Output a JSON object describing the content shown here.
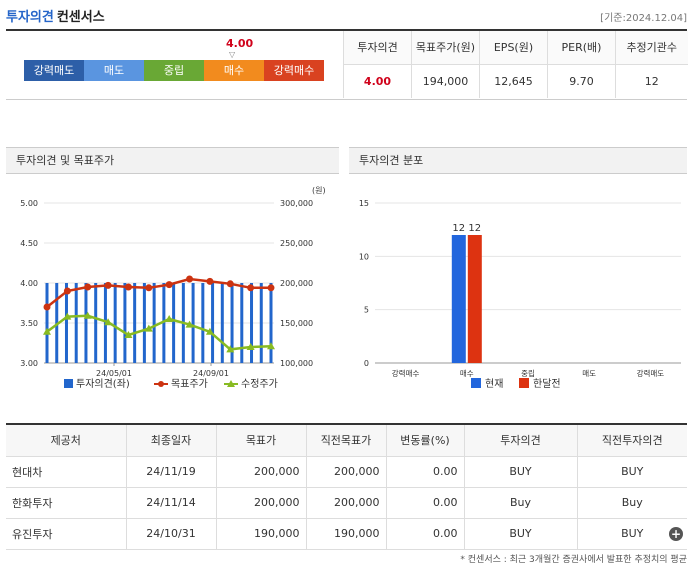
{
  "header": {
    "title": "투자의견",
    "subtitle": "컨센서스",
    "date": "[기준:2024.12.04]"
  },
  "rating_bar": {
    "current": "4.00",
    "segments": [
      {
        "label": "강력매도",
        "color": "#2d5fa8"
      },
      {
        "label": "매도",
        "color": "#5a95e0"
      },
      {
        "label": "중립",
        "color": "#69a835"
      },
      {
        "label": "매수",
        "color": "#f28b1e"
      },
      {
        "label": "강력매수",
        "color": "#d94220"
      }
    ]
  },
  "summary": {
    "headers": [
      "투자의견",
      "목표주가(원)",
      "EPS(원)",
      "PER(배)",
      "추정기관수"
    ],
    "values": [
      "4.00",
      "194,000",
      "12,645",
      "9.70",
      "12"
    ]
  },
  "chart1": {
    "title": "투자의견 및 목표주가",
    "unit": "(원)",
    "legend": [
      "투자의견(좌)",
      "목표주가",
      "수정주가"
    ]
  },
  "chart2": {
    "title": "투자의견 분포",
    "legend": [
      "현재",
      "한달전"
    ]
  },
  "chart_data": [
    {
      "type": "line",
      "title": "투자의견 및 목표주가",
      "x_ticks": [
        "24/05/01",
        "24/09/01"
      ],
      "y_left": {
        "ticks": [
          "5.00",
          "4.50",
          "4.00",
          "3.50",
          "3.00"
        ],
        "range": [
          3.0,
          5.0
        ]
      },
      "y_right": {
        "ticks": [
          "300,000",
          "250,000",
          "200,000",
          "150,000",
          "100,000"
        ],
        "range": [
          100000,
          300000
        ]
      },
      "series": [
        {
          "name": "투자의견(좌)",
          "color": "#2266cc",
          "values": [
            4.0,
            4.0,
            4.0,
            4.0,
            4.0,
            4.0,
            4.0,
            4.0,
            4.0,
            4.0,
            4.0,
            4.0,
            4.0,
            4.0,
            4.0,
            4.0,
            4.0,
            4.0,
            4.0,
            4.0,
            4.0,
            4.0,
            4.0,
            4.0
          ]
        },
        {
          "name": "목표주가",
          "color": "#cc3311",
          "values": [
            170000,
            190000,
            195000,
            197000,
            195000,
            194000,
            198000,
            205000,
            202000,
            199000,
            194000,
            194000
          ]
        },
        {
          "name": "수정주가",
          "color": "#88bb22",
          "values": [
            139000,
            158000,
            159000,
            151000,
            135000,
            143000,
            155000,
            148000,
            139000,
            117000,
            120000,
            121000
          ]
        }
      ]
    },
    {
      "type": "bar",
      "title": "투자의견 분포",
      "categories": [
        "강력매수",
        "매수",
        "중립",
        "매도",
        "강력매도"
      ],
      "y_ticks": [
        "15",
        "10",
        "5",
        "0"
      ],
      "ylim": [
        0,
        15
      ],
      "series": [
        {
          "name": "현재",
          "color": "#2266dd",
          "values": [
            0,
            12,
            0,
            0,
            0
          ]
        },
        {
          "name": "한달전",
          "color": "#dd3311",
          "values": [
            0,
            12,
            0,
            0,
            0
          ]
        }
      ]
    }
  ],
  "table": {
    "headers": [
      "제공처",
      "최종일자",
      "목표가",
      "직전목표가",
      "변동률(%)",
      "투자의견",
      "직전투자의견"
    ],
    "rows": [
      [
        "현대차",
        "24/11/19",
        "200,000",
        "200,000",
        "0.00",
        "BUY",
        "BUY"
      ],
      [
        "한화투자",
        "24/11/14",
        "200,000",
        "200,000",
        "0.00",
        "Buy",
        "Buy"
      ],
      [
        "유진투자",
        "24/10/31",
        "190,000",
        "190,000",
        "0.00",
        "BUY",
        "BUY"
      ]
    ]
  },
  "footnote": "* 컨센서스 : 최근 3개월간 증권사에서 발표한 추정치의 평균"
}
